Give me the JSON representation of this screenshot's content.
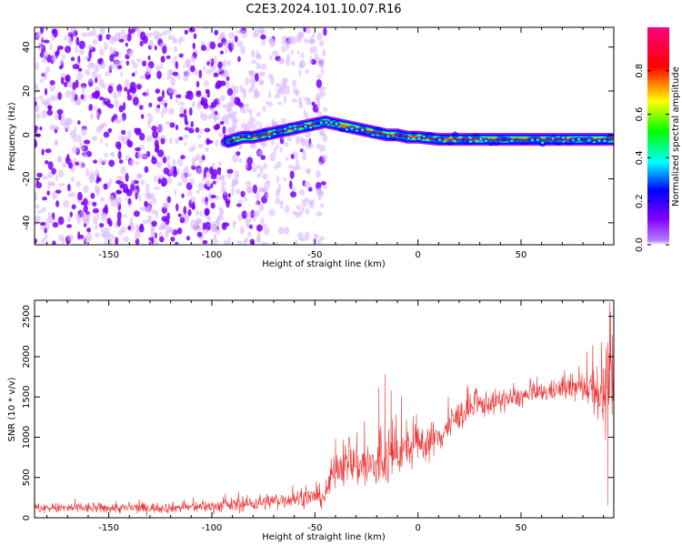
{
  "title": "C2E3.2024.101.10.07.R16",
  "colors": {
    "snr_line": "#ee3333",
    "ridge_core": "#ff2a2a",
    "scatter_dense": "#7a00ff",
    "scatter_faint": "#d9b3ff"
  },
  "chart_data": [
    {
      "type": "heatmap",
      "name": "spectrogram",
      "xlabel": "Height of straight line (km)",
      "ylabel": "Frequency (Hz)",
      "xlim": [
        -186,
        95
      ],
      "ylim": [
        -50,
        49
      ],
      "xticks": [
        -150,
        -100,
        -50,
        0,
        50
      ],
      "yticks": [
        -40,
        -20,
        0,
        20,
        40
      ],
      "colorbar": {
        "label": "Normalized spectral amplitude",
        "range": [
          0,
          1
        ],
        "ticks": [
          "0.0",
          "0.2",
          "0.4",
          "0.6",
          "0.8"
        ],
        "tick_values": [
          0.0,
          0.2,
          0.4,
          0.6,
          0.8
        ],
        "colormap": [
          "#ffffff",
          "#7f00ff",
          "#0000ff",
          "#00ffff",
          "#00ff00",
          "#ffff00",
          "#ff0000",
          "#ff007f"
        ]
      },
      "ridge": {
        "x": [
          -92,
          -85,
          -80,
          -75,
          -70,
          -65,
          -60,
          -55,
          -50,
          -45,
          -40,
          -35,
          -30,
          -25,
          -20,
          -15,
          -10,
          -5,
          0,
          10,
          20,
          40,
          60,
          80,
          95
        ],
        "y": [
          -3,
          -1,
          -1,
          0,
          1,
          2,
          3,
          4,
          5,
          6,
          5,
          4,
          3,
          2,
          1,
          0,
          0,
          -1,
          -1,
          -2,
          -2,
          -2,
          -2,
          -2,
          -2
        ]
      },
      "noise_regions": [
        {
          "x_range": [
            -186,
            -92
          ],
          "density": "high"
        },
        {
          "x_range": [
            -92,
            -45
          ],
          "density": "low"
        }
      ]
    },
    {
      "type": "line",
      "name": "snr",
      "xlabel": "Height of straight line (km)",
      "ylabel": "SNR (10 * v/v)",
      "xlim": [
        -186,
        95
      ],
      "ylim": [
        0,
        2700
      ],
      "xticks": [
        -150,
        -100,
        -50,
        0,
        50
      ],
      "yticks": [
        0,
        500,
        1000,
        1500,
        2000,
        2500
      ],
      "envelope": {
        "x": [
          -186,
          -150,
          -120,
          -100,
          -80,
          -60,
          -50,
          -45,
          -40,
          -30,
          -20,
          -10,
          0,
          10,
          20,
          30,
          40,
          50,
          60,
          70,
          80,
          85,
          90,
          95
        ],
        "mean": [
          120,
          120,
          125,
          140,
          180,
          240,
          260,
          270,
          650,
          680,
          620,
          800,
          900,
          1000,
          1280,
          1400,
          1450,
          1500,
          1550,
          1600,
          1620,
          1650,
          1500,
          1600
        ],
        "spread": [
          60,
          60,
          60,
          70,
          90,
          100,
          100,
          150,
          200,
          280,
          330,
          250,
          220,
          200,
          170,
          150,
          130,
          120,
          110,
          110,
          180,
          280,
          450,
          400
        ]
      },
      "spikes": [
        {
          "x": 93,
          "y": 2680
        },
        {
          "x": 93.5,
          "y": 2560
        },
        {
          "x": 92,
          "y": 150
        },
        {
          "x": 89,
          "y": 2180
        },
        {
          "x": -19,
          "y": 1620
        },
        {
          "x": -13,
          "y": 1580
        },
        {
          "x": -8,
          "y": 1520
        },
        {
          "x": -40,
          "y": 980
        },
        {
          "x": -16,
          "y": 1780
        },
        {
          "x": -26,
          "y": 1200
        }
      ]
    }
  ]
}
